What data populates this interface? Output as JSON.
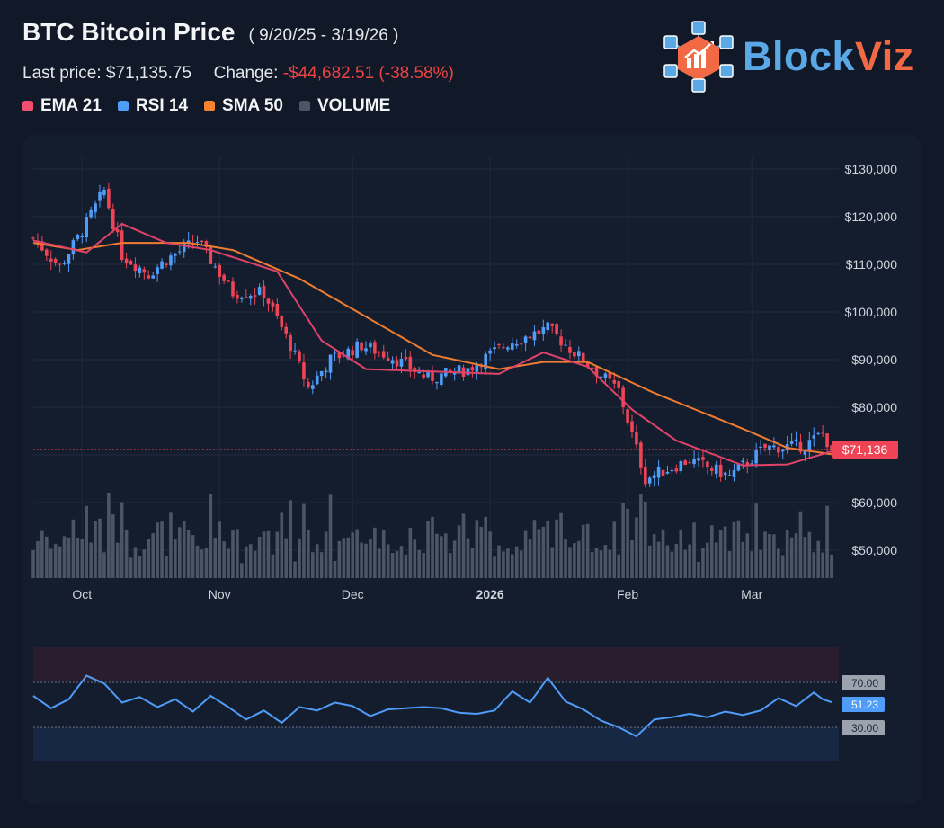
{
  "header": {
    "title": "BTC Bitcoin Price",
    "date_range": "( 9/20/25 - 3/19/26 )",
    "last_price_label": "Last price: $71,135.75",
    "change_label": "Change:",
    "change_value": "-$44,682.51 (-38.58%)"
  },
  "legend": [
    {
      "label": "EMA 21",
      "color": "#f0506e"
    },
    {
      "label": "RSI 14",
      "color": "#4f9cf9"
    },
    {
      "label": "SMA 50",
      "color": "#f58332"
    },
    {
      "label": "VOLUME",
      "color": "#4b5563"
    }
  ],
  "logo": {
    "text_a": "Block",
    "text_b": "Viz"
  },
  "chart_data": {
    "type": "candlestick",
    "x_ticks": [
      "Oct",
      "Nov",
      "Dec",
      "2026",
      "Feb",
      "Mar"
    ],
    "y_ticks": [
      "$130,000",
      "$120,000",
      "$110,000",
      "$100,000",
      "$90,000",
      "$80,000",
      "$60,000",
      "$50,000"
    ],
    "ylim": [
      45000,
      135000
    ],
    "last_price_tag": "$71,136",
    "last_price": 71136,
    "colors": {
      "up": "#4f9cf9",
      "down": "#ef4455",
      "ema": "#e0436a",
      "sma": "#f07c30",
      "volume": "#4b5563",
      "rsi": "#4f9cf9"
    },
    "anchors": [
      {
        "date": "2025-09-20",
        "close": 115500
      },
      {
        "date": "2025-09-26",
        "close": 109500
      },
      {
        "date": "2025-10-01",
        "close": 117000
      },
      {
        "date": "2025-10-06",
        "close": 125500
      },
      {
        "date": "2025-10-10",
        "close": 112000
      },
      {
        "date": "2025-10-16",
        "close": 108000
      },
      {
        "date": "2025-10-20",
        "close": 111000
      },
      {
        "date": "2025-10-27",
        "close": 115000
      },
      {
        "date": "2025-11-04",
        "close": 104000
      },
      {
        "date": "2025-11-11",
        "close": 104000
      },
      {
        "date": "2025-11-17",
        "close": 93000
      },
      {
        "date": "2025-11-21",
        "close": 84000
      },
      {
        "date": "2025-11-26",
        "close": 90000
      },
      {
        "date": "2025-12-03",
        "close": 93000
      },
      {
        "date": "2025-12-10",
        "close": 90500
      },
      {
        "date": "2025-12-18",
        "close": 86000
      },
      {
        "date": "2025-12-27",
        "close": 88000
      },
      {
        "date": "2026-01-05",
        "close": 93500
      },
      {
        "date": "2026-01-14",
        "close": 96500
      },
      {
        "date": "2026-01-20",
        "close": 91500
      },
      {
        "date": "2026-01-30",
        "close": 83500
      },
      {
        "date": "2026-02-05",
        "close": 65000
      },
      {
        "date": "2026-02-15",
        "close": 69000
      },
      {
        "date": "2026-02-24",
        "close": 65500
      },
      {
        "date": "2026-03-04",
        "close": 71500
      },
      {
        "date": "2026-03-13",
        "close": 72000
      },
      {
        "date": "2026-03-17",
        "close": 74500
      },
      {
        "date": "2026-03-19",
        "close": 71136
      }
    ],
    "ema21_points": [
      [
        0,
        115000
      ],
      [
        12,
        112500
      ],
      [
        20,
        118500
      ],
      [
        30,
        114500
      ],
      [
        40,
        113000
      ],
      [
        55,
        108500
      ],
      [
        65,
        94000
      ],
      [
        75,
        88000
      ],
      [
        90,
        87500
      ],
      [
        105,
        87000
      ],
      [
        115,
        91500
      ],
      [
        125,
        88500
      ],
      [
        135,
        79500
      ],
      [
        145,
        73000
      ],
      [
        160,
        67800
      ],
      [
        170,
        68000
      ],
      [
        181,
        71000
      ]
    ],
    "sma50_points": [
      [
        0,
        114500
      ],
      [
        10,
        113000
      ],
      [
        20,
        114500
      ],
      [
        35,
        114500
      ],
      [
        45,
        113000
      ],
      [
        60,
        107000
      ],
      [
        75,
        99000
      ],
      [
        90,
        91000
      ],
      [
        105,
        88000
      ],
      [
        115,
        89500
      ],
      [
        125,
        89500
      ],
      [
        140,
        83000
      ],
      [
        160,
        75500
      ],
      [
        170,
        71500
      ],
      [
        181,
        70000
      ]
    ],
    "rsi": {
      "levels": [
        "70.00",
        "51.23",
        "30.00"
      ],
      "current": 51.23,
      "ylim": [
        0,
        100
      ],
      "points": [
        [
          0,
          58
        ],
        [
          4,
          47
        ],
        [
          8,
          55
        ],
        [
          12,
          76
        ],
        [
          16,
          69
        ],
        [
          20,
          52
        ],
        [
          24,
          57
        ],
        [
          28,
          48
        ],
        [
          32,
          55
        ],
        [
          36,
          44
        ],
        [
          40,
          58
        ],
        [
          44,
          48
        ],
        [
          48,
          37
        ],
        [
          52,
          45
        ],
        [
          56,
          34
        ],
        [
          60,
          48
        ],
        [
          64,
          45
        ],
        [
          68,
          52
        ],
        [
          72,
          49
        ],
        [
          76,
          40
        ],
        [
          80,
          46
        ],
        [
          84,
          47
        ],
        [
          88,
          48
        ],
        [
          92,
          47
        ],
        [
          96,
          43
        ],
        [
          100,
          42
        ],
        [
          104,
          45
        ],
        [
          108,
          62
        ],
        [
          112,
          52
        ],
        [
          116,
          74
        ],
        [
          120,
          53
        ],
        [
          124,
          46
        ],
        [
          128,
          36
        ],
        [
          132,
          30
        ],
        [
          136,
          22
        ],
        [
          140,
          37
        ],
        [
          144,
          39
        ],
        [
          148,
          42
        ],
        [
          152,
          39
        ],
        [
          156,
          44
        ],
        [
          160,
          41
        ],
        [
          164,
          45
        ],
        [
          168,
          56
        ],
        [
          172,
          49
        ],
        [
          176,
          61
        ],
        [
          178,
          55
        ],
        [
          181,
          51
        ]
      ]
    }
  }
}
